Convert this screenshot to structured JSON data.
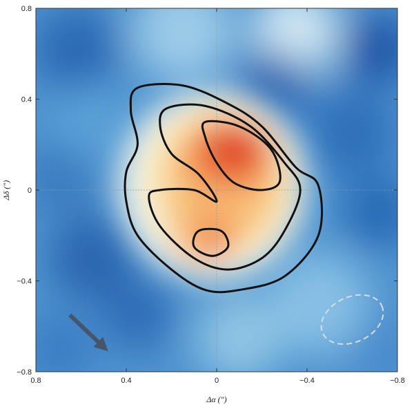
{
  "chart_data": {
    "type": "heatmap",
    "title": "",
    "xlabel": "Δα (″)",
    "ylabel": "Δδ (″)",
    "xlim": [
      0.8,
      -0.8
    ],
    "ylim": [
      -0.8,
      0.8
    ],
    "xticks": [
      0.8,
      0.4,
      0,
      -0.4,
      -0.8
    ],
    "yticks": [
      0.8,
      0.4,
      0,
      -0.4,
      -0.8
    ],
    "xtick_labels": [
      "0.8",
      "0.4",
      "0",
      "−0.4",
      "−0.8"
    ],
    "ytick_labels": [
      "0.8",
      "0.4",
      "0",
      "−0.4",
      "−0.8"
    ],
    "grid": false,
    "crosshair_at": [
      0,
      0
    ],
    "colormap": [
      "#1f5fae",
      "#5fa8dc",
      "#e8f4f8",
      "#fbe3a0",
      "#f5a55c",
      "#d7301f"
    ],
    "contours": [
      {
        "level": 1,
        "points": [
          [
            0.35,
            0.45
          ],
          [
            0.15,
            0.46
          ],
          [
            -0.05,
            0.38
          ],
          [
            -0.2,
            0.28
          ],
          [
            -0.35,
            0.1
          ],
          [
            -0.45,
            0.02
          ],
          [
            -0.45,
            -0.2
          ],
          [
            -0.3,
            -0.38
          ],
          [
            -0.1,
            -0.44
          ],
          [
            0.05,
            -0.44
          ],
          [
            0.2,
            -0.35
          ],
          [
            0.35,
            -0.2
          ],
          [
            0.4,
            -0.05
          ],
          [
            0.4,
            0.08
          ],
          [
            0.35,
            0.2
          ],
          [
            0.38,
            0.35
          ]
        ]
      },
      {
        "level": 2,
        "points": [
          [
            0.22,
            0.36
          ],
          [
            0.05,
            0.37
          ],
          [
            -0.15,
            0.28
          ],
          [
            -0.3,
            0.12
          ],
          [
            -0.37,
            0.0
          ],
          [
            -0.3,
            -0.18
          ],
          [
            -0.2,
            -0.3
          ],
          [
            -0.05,
            -0.35
          ],
          [
            0.1,
            -0.3
          ],
          [
            0.25,
            -0.16
          ],
          [
            0.3,
            -0.03
          ],
          [
            0.25,
            0.0
          ],
          [
            0.1,
            0.0
          ],
          [
            0.0,
            -0.05
          ],
          [
            0.08,
            0.07
          ],
          [
            0.2,
            0.16
          ],
          [
            0.25,
            0.28
          ]
        ]
      },
      {
        "level": 3,
        "points": [
          [
            0.05,
            0.3
          ],
          [
            -0.1,
            0.28
          ],
          [
            -0.24,
            0.18
          ],
          [
            -0.28,
            0.04
          ],
          [
            -0.2,
            0.0
          ],
          [
            -0.08,
            0.03
          ],
          [
            0.0,
            0.12
          ],
          [
            0.05,
            0.23
          ]
        ]
      },
      {
        "level": 3,
        "points": [
          [
            0.08,
            -0.18
          ],
          [
            -0.02,
            -0.18
          ],
          [
            -0.05,
            -0.25
          ],
          [
            0.02,
            -0.29
          ],
          [
            0.1,
            -0.25
          ]
        ]
      }
    ],
    "peaks": [
      {
        "x": -0.08,
        "y": 0.18,
        "intensity": 1.0
      },
      {
        "x": 0.0,
        "y": -0.22,
        "intensity": 0.7
      }
    ],
    "beam": {
      "x": -0.6,
      "y": -0.57,
      "major": 0.16,
      "minor": 0.11,
      "angle": -25
    },
    "arrow": {
      "from": [
        0.65,
        -0.55
      ],
      "to": [
        0.48,
        -0.71
      ]
    }
  }
}
